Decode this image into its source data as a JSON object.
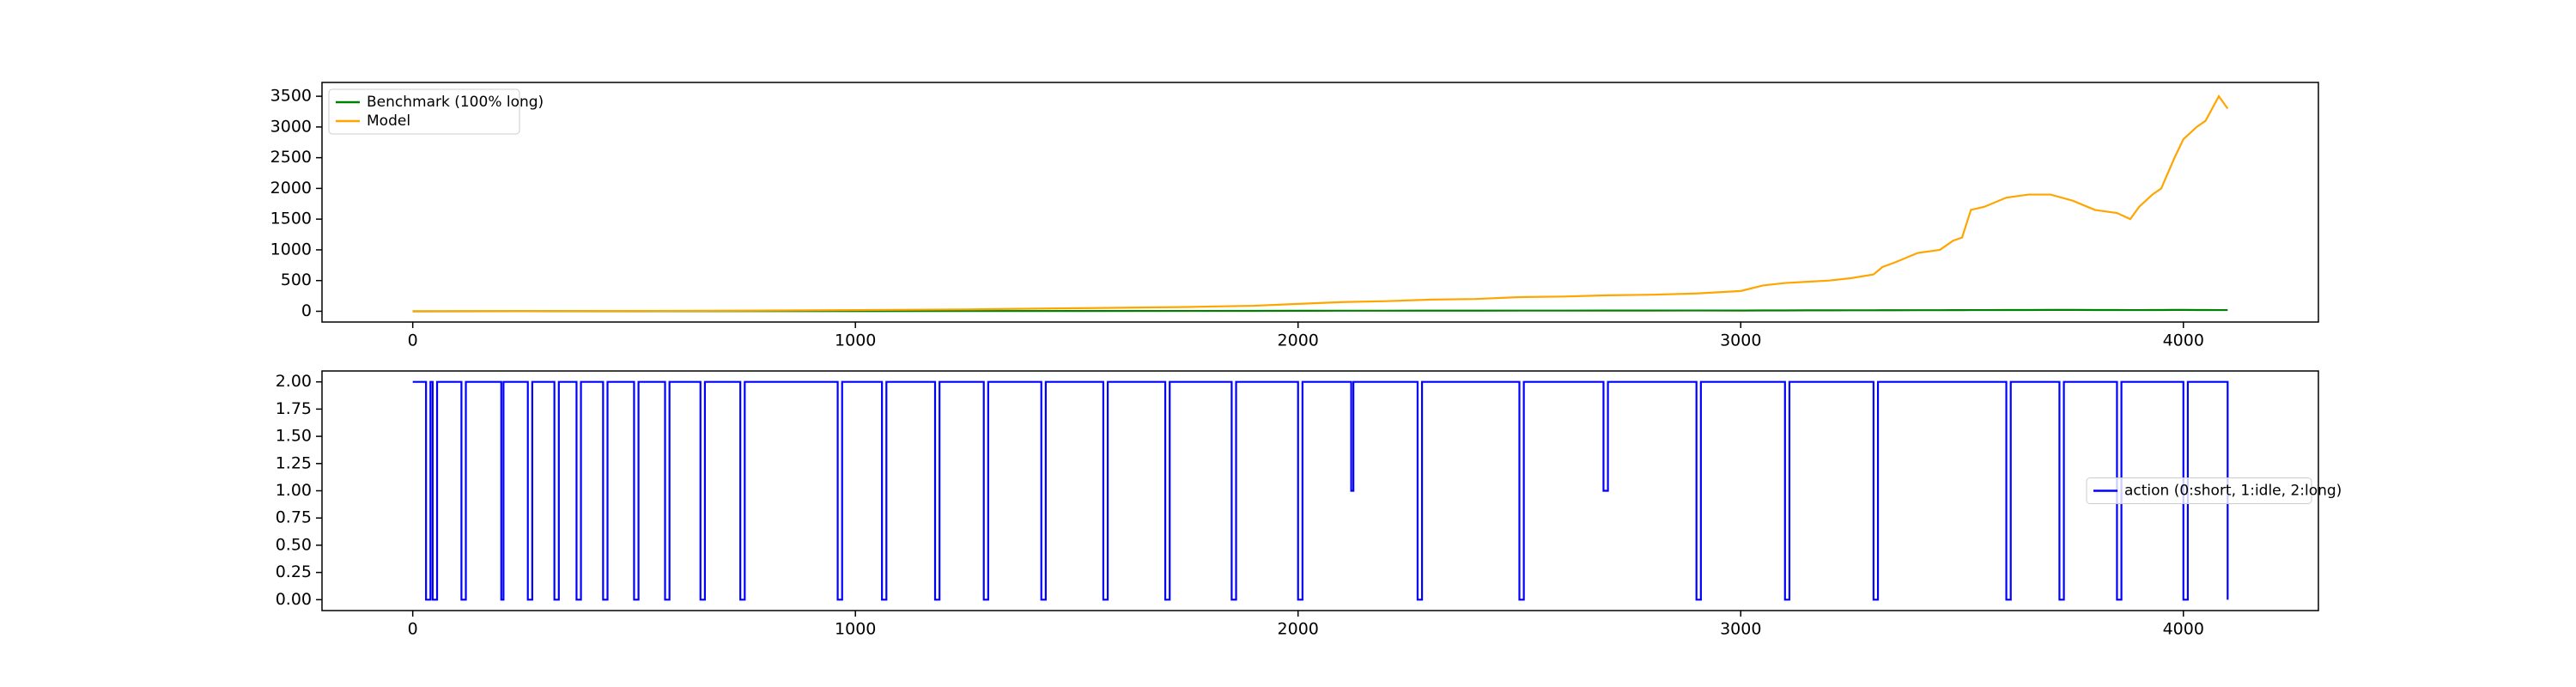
{
  "chart_data": [
    {
      "type": "line",
      "x": [
        0,
        250,
        500,
        750,
        1000,
        1250,
        1500,
        1750,
        1900,
        2000,
        2100,
        2200,
        2300,
        2400,
        2500,
        2600,
        2700,
        2800,
        2900,
        3000,
        3050,
        3100,
        3150,
        3200,
        3250,
        3300,
        3320,
        3350,
        3400,
        3450,
        3480,
        3500,
        3520,
        3550,
        3600,
        3650,
        3700,
        3750,
        3800,
        3850,
        3880,
        3900,
        3930,
        3950,
        3980,
        4000,
        4030,
        4050,
        4080,
        4100
      ],
      "series": [
        {
          "name": "Benchmark (100% long)",
          "color": "#008000",
          "values": [
            0,
            1,
            2,
            3,
            3,
            4,
            5,
            6,
            7,
            8,
            9,
            9,
            10,
            10,
            11,
            11,
            12,
            12,
            13,
            12,
            14,
            14,
            15,
            15,
            16,
            16,
            17,
            17,
            18,
            18,
            19,
            19,
            20,
            20,
            21,
            21,
            22,
            22,
            21,
            21,
            20,
            20,
            21,
            21,
            22,
            22,
            21,
            21,
            20,
            20
          ]
        },
        {
          "name": "Model",
          "color": "#ffa500",
          "values": [
            0,
            2,
            5,
            10,
            20,
            30,
            50,
            70,
            90,
            120,
            150,
            165,
            190,
            200,
            230,
            240,
            260,
            270,
            290,
            330,
            420,
            460,
            480,
            500,
            540,
            600,
            720,
            800,
            950,
            1000,
            1150,
            1200,
            1650,
            1700,
            1850,
            1900,
            1900,
            1800,
            1650,
            1600,
            1500,
            1700,
            1900,
            2000,
            2500,
            2800,
            3000,
            3100,
            3500,
            3300
          ]
        }
      ],
      "xlim": [
        -205,
        4305
      ],
      "xticks": [
        0,
        1000,
        2000,
        3000,
        4000
      ],
      "ylim": [
        -175,
        3725
      ],
      "yticks": [
        0,
        500,
        1000,
        1500,
        2000,
        2500,
        3000,
        3500
      ],
      "legend": "upper left",
      "drawstyle": "default"
    },
    {
      "type": "line",
      "x": [
        0,
        30,
        40,
        45,
        55,
        110,
        120,
        200,
        205,
        260,
        270,
        320,
        330,
        370,
        380,
        430,
        440,
        500,
        510,
        570,
        580,
        650,
        660,
        740,
        750,
        960,
        970,
        1060,
        1070,
        1180,
        1190,
        1290,
        1300,
        1420,
        1430,
        1560,
        1570,
        1700,
        1710,
        1850,
        1860,
        2000,
        2010,
        2120,
        2125,
        2270,
        2280,
        2500,
        2510,
        2690,
        2700,
        2900,
        2910,
        3100,
        3110,
        3300,
        3310,
        3600,
        3610,
        3720,
        3730,
        3850,
        3860,
        4000,
        4010,
        4100
      ],
      "series": [
        {
          "name": "action (0:short, 1:idle, 2:long)",
          "color": "#0000ff",
          "values": [
            2,
            0,
            2,
            0,
            2,
            0,
            2,
            0,
            2,
            0,
            2,
            0,
            2,
            0,
            2,
            0,
            2,
            0,
            2,
            0,
            2,
            0,
            2,
            0,
            2,
            0,
            2,
            0,
            2,
            0,
            2,
            0,
            2,
            0,
            2,
            0,
            2,
            0,
            2,
            0,
            2,
            0,
            2,
            1,
            2,
            0,
            2,
            0,
            2,
            1,
            2,
            0,
            2,
            0,
            2,
            0,
            2,
            0,
            2,
            0,
            2,
            0,
            2,
            0,
            2,
            0
          ]
        }
      ],
      "xlim": [
        -205,
        4305
      ],
      "xticks": [
        0,
        1000,
        2000,
        3000,
        4000
      ],
      "ylim": [
        -0.1,
        2.1
      ],
      "yticks": [
        {
          "value": 0,
          "label": "0.00"
        },
        {
          "value": 0.25,
          "label": "0.25"
        },
        {
          "value": 0.5,
          "label": "0.50"
        },
        {
          "value": 0.75,
          "label": "0.75"
        },
        {
          "value": 1,
          "label": "1.00"
        },
        {
          "value": 1.25,
          "label": "1.25"
        },
        {
          "value": 1.5,
          "label": "1.50"
        },
        {
          "value": 1.75,
          "label": "1.75"
        },
        {
          "value": 2,
          "label": "2.00"
        }
      ],
      "legend": "center right",
      "drawstyle": "steps-post"
    }
  ]
}
